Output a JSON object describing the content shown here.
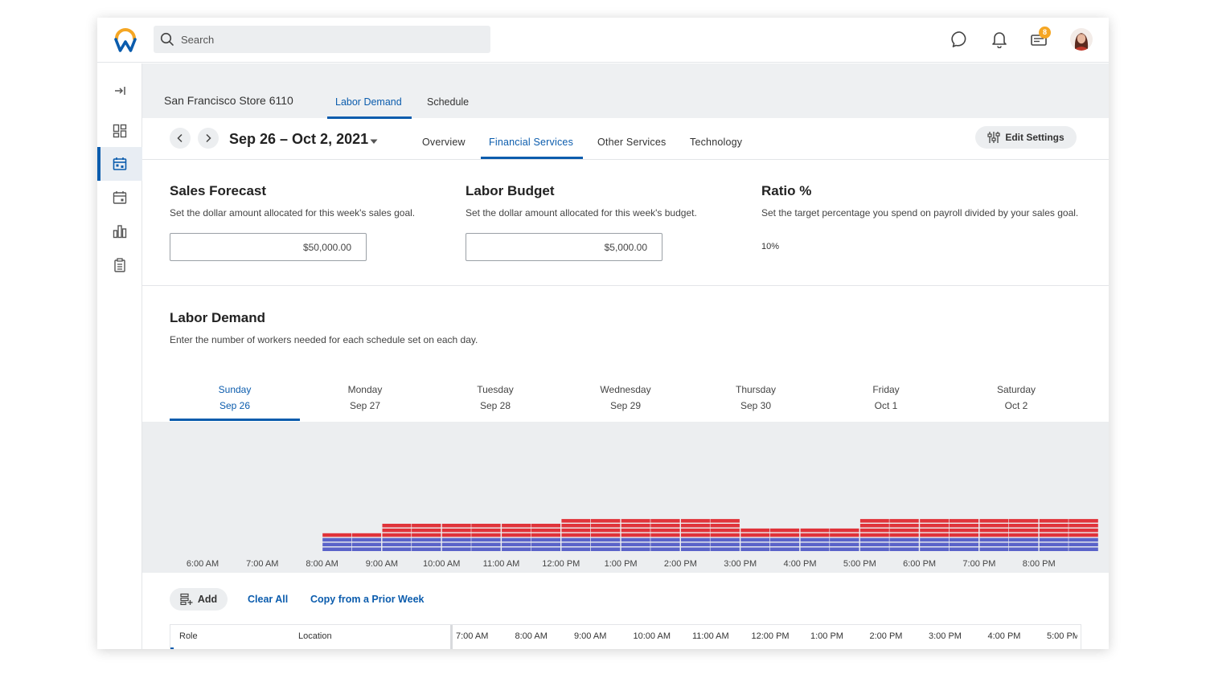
{
  "header": {
    "search_placeholder": "Search",
    "inbox_badge": "8",
    "icons": [
      "chat-icon",
      "bell-icon",
      "inbox-icon"
    ]
  },
  "store": {
    "name": "San Francisco Store 6110",
    "tabs": [
      {
        "label": "Labor Demand",
        "active": true
      },
      {
        "label": "Schedule",
        "active": false
      }
    ]
  },
  "week": {
    "label": "Sep 26 – Oct 2, 2021",
    "sub_tabs": [
      {
        "label": "Overview",
        "active": false
      },
      {
        "label": "Financial Services",
        "active": true
      },
      {
        "label": "Other Services",
        "active": false
      },
      {
        "label": "Technology",
        "active": false
      }
    ],
    "edit_settings_label": "Edit Settings"
  },
  "cards": {
    "sales": {
      "title": "Sales Forecast",
      "desc": "Set the dollar amount allocated for this week's sales goal.",
      "value": "$50,000.00"
    },
    "budget": {
      "title": "Labor Budget",
      "desc": "Set the dollar amount allocated for this week's budget.",
      "value": "$5,000.00"
    },
    "ratio": {
      "title": "Ratio %",
      "desc": "Set the target percentage you spend on payroll divided by your sales goal.",
      "value": "10%"
    }
  },
  "labor_demand": {
    "title": "Labor Demand",
    "desc": "Enter the number of workers needed for each schedule set on each day.",
    "days": [
      {
        "day": "Sunday",
        "date": "Sep 26",
        "active": true
      },
      {
        "day": "Monday",
        "date": "Sep 27",
        "active": false
      },
      {
        "day": "Tuesday",
        "date": "Sep 28",
        "active": false
      },
      {
        "day": "Wednesday",
        "date": "Sep 29",
        "active": false
      },
      {
        "day": "Thursday",
        "date": "Sep 30",
        "active": false
      },
      {
        "day": "Friday",
        "date": "Oct 1",
        "active": false
      },
      {
        "day": "Saturday",
        "date": "Oct 2",
        "active": false
      }
    ]
  },
  "chart_data": {
    "type": "bar",
    "categories": [
      "6:00 AM",
      "7:00 AM",
      "8:00 AM",
      "9:00 AM",
      "10:00 AM",
      "11:00 AM",
      "12:00 PM",
      "1:00 PM",
      "2:00 PM",
      "3:00 PM",
      "4:00 PM",
      "5:00 PM",
      "6:00 PM",
      "7:00 PM",
      "8:00 PM"
    ],
    "half_hour_slots": [
      {
        "blue": 0,
        "red": 0
      },
      {
        "blue": 0,
        "red": 0
      },
      {
        "blue": 0,
        "red": 0
      },
      {
        "blue": 0,
        "red": 0
      },
      {
        "blue": 3,
        "red": 1
      },
      {
        "blue": 3,
        "red": 1
      },
      {
        "blue": 3,
        "red": 3
      },
      {
        "blue": 3,
        "red": 3
      },
      {
        "blue": 3,
        "red": 3
      },
      {
        "blue": 3,
        "red": 3
      },
      {
        "blue": 3,
        "red": 3
      },
      {
        "blue": 3,
        "red": 3
      },
      {
        "blue": 3,
        "red": 4
      },
      {
        "blue": 3,
        "red": 4
      },
      {
        "blue": 3,
        "red": 4
      },
      {
        "blue": 3,
        "red": 4
      },
      {
        "blue": 3,
        "red": 4
      },
      {
        "blue": 3,
        "red": 4
      },
      {
        "blue": 3,
        "red": 2
      },
      {
        "blue": 3,
        "red": 2
      },
      {
        "blue": 3,
        "red": 2
      },
      {
        "blue": 3,
        "red": 2
      },
      {
        "blue": 3,
        "red": 4
      },
      {
        "blue": 3,
        "red": 4
      },
      {
        "blue": 3,
        "red": 4
      },
      {
        "blue": 3,
        "red": 4
      },
      {
        "blue": 3,
        "red": 4
      },
      {
        "blue": 3,
        "red": 4
      },
      {
        "blue": 3,
        "red": 4
      },
      {
        "blue": 3,
        "red": 4
      }
    ],
    "series_colors": {
      "blue": "#5a63c9",
      "red": "#e0333a"
    }
  },
  "actions": {
    "add_label": "Add",
    "clear_all_label": "Clear All",
    "copy_label": "Copy from a Prior Week"
  },
  "grid": {
    "role_header": "Role",
    "location_header": "Location",
    "time_headers": [
      "7:00 AM",
      "8:00 AM",
      "9:00 AM",
      "10:00 AM",
      "11:00 AM",
      "12:00 PM",
      "1:00 PM",
      "2:00 PM",
      "3:00 PM",
      "4:00 PM",
      "5:00 PM"
    ]
  }
}
